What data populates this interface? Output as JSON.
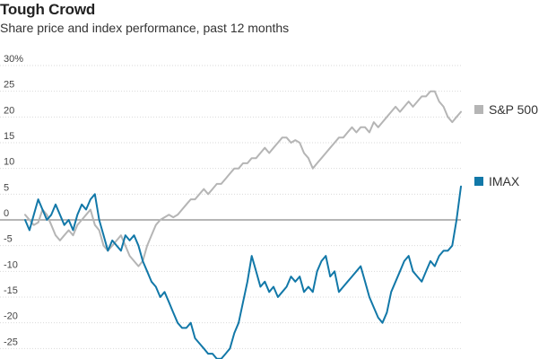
{
  "header": {
    "title": "Tough Crowd",
    "subtitle": "Share price and index performance, past 12 months"
  },
  "colors": {
    "sp500": "#b5b5b5",
    "imax": "#1278a8",
    "grid": "#d9d9d9",
    "zero_line": "#8a8a8a",
    "text": "#333333"
  },
  "chart_data": {
    "type": "line",
    "title": "Tough Crowd",
    "subtitle": "Share price and index performance, past 12 months",
    "ylim": [
      -27,
      30
    ],
    "y_ticks": [
      30,
      25,
      20,
      15,
      10,
      5,
      0,
      -5,
      -10,
      -15,
      -20,
      -25
    ],
    "y_tick_labels": [
      "30%",
      "25",
      "20",
      "15",
      "10",
      "5",
      "0",
      "-5",
      "-10",
      "-15",
      "-20",
      "-25"
    ],
    "x_range": [
      0,
      100
    ],
    "grid": true,
    "legend_placement": "right",
    "series": [
      {
        "name": "S&P 500",
        "color": "#b5b5b5",
        "x": [
          0,
          1,
          2,
          3,
          4,
          5,
          6,
          7,
          8,
          9,
          10,
          11,
          12,
          13,
          14,
          15,
          16,
          17,
          18,
          19,
          20,
          21,
          22,
          23,
          24,
          25,
          26,
          27,
          28,
          29,
          30,
          31,
          32,
          33,
          34,
          35,
          36,
          37,
          38,
          39,
          40,
          41,
          42,
          43,
          44,
          45,
          46,
          47,
          48,
          49,
          50,
          51,
          52,
          53,
          54,
          55,
          56,
          57,
          58,
          59,
          60,
          61,
          62,
          63,
          64,
          65,
          66,
          67,
          68,
          69,
          70,
          71,
          72,
          73,
          74,
          75,
          76,
          77,
          78,
          79,
          80,
          81,
          82,
          83,
          84,
          85,
          86,
          87,
          88,
          89,
          90,
          91,
          92,
          93,
          94,
          95,
          96,
          97,
          98,
          99,
          100
        ],
        "values": [
          1,
          0,
          -1,
          -0.5,
          2,
          1,
          -1,
          -3,
          -4,
          -3,
          -2,
          -3,
          -1,
          0,
          1,
          2,
          -1,
          -2,
          -5,
          -6,
          -5,
          -4,
          -3,
          -5,
          -7,
          -8,
          -9,
          -8,
          -5,
          -3,
          -1,
          0,
          0.5,
          1,
          0.5,
          1,
          2,
          3,
          4,
          4,
          5,
          6,
          5,
          6,
          7,
          7,
          8,
          9,
          10,
          10,
          11,
          11,
          12,
          12,
          13,
          14,
          13,
          14,
          15,
          16,
          16,
          15,
          15.5,
          15,
          13,
          12,
          10,
          11,
          12,
          13,
          14,
          15,
          16,
          16,
          17,
          18,
          17,
          18,
          18,
          17,
          19,
          18,
          19,
          20,
          21,
          22,
          21,
          22,
          23,
          22,
          23,
          24,
          24,
          25,
          25,
          23,
          22,
          20,
          19,
          20,
          21
        ],
        "end_label": "S&P 500"
      },
      {
        "name": "IMAX",
        "color": "#1278a8",
        "x": [
          0,
          1,
          2,
          3,
          4,
          5,
          6,
          7,
          8,
          9,
          10,
          11,
          12,
          13,
          14,
          15,
          16,
          17,
          18,
          19,
          20,
          21,
          22,
          23,
          24,
          25,
          26,
          27,
          28,
          29,
          30,
          31,
          32,
          33,
          34,
          35,
          36,
          37,
          38,
          39,
          40,
          41,
          42,
          43,
          44,
          45,
          46,
          47,
          48,
          49,
          50,
          51,
          52,
          53,
          54,
          55,
          56,
          57,
          58,
          59,
          60,
          61,
          62,
          63,
          64,
          65,
          66,
          67,
          68,
          69,
          70,
          71,
          72,
          73,
          74,
          75,
          76,
          77,
          78,
          79,
          80,
          81,
          82,
          83,
          84,
          85,
          86,
          87,
          88,
          89,
          90,
          91,
          92,
          93,
          94,
          95,
          96,
          97,
          98,
          99,
          100
        ],
        "values": [
          0,
          -2,
          1,
          4,
          2,
          0,
          1,
          3,
          1,
          -1,
          0,
          -2,
          1,
          3,
          2,
          4,
          5,
          0,
          -3,
          -6,
          -4,
          -5,
          -6,
          -3,
          -4,
          -3,
          -5,
          -8,
          -10,
          -12,
          -13,
          -15,
          -14,
          -16,
          -18,
          -20,
          -21,
          -21,
          -20,
          -23,
          -24,
          -25,
          -26,
          -26,
          -27,
          -27,
          -26,
          -25,
          -22,
          -20,
          -16,
          -12,
          -7,
          -10,
          -13,
          -12,
          -14,
          -13,
          -15,
          -14,
          -13,
          -11,
          -12,
          -11,
          -14,
          -13,
          -14,
          -10,
          -8,
          -7,
          -11,
          -10,
          -14,
          -13,
          -12,
          -11,
          -10,
          -9,
          -12,
          -15,
          -17,
          -19,
          -20,
          -18,
          -14,
          -12,
          -10,
          -8,
          -7,
          -10,
          -11,
          -12,
          -10,
          -8,
          -9,
          -7,
          -6,
          -6,
          -5,
          0,
          6.5
        ],
        "end_label": "IMAX"
      }
    ],
    "legend": [
      "S&P 500",
      "IMAX"
    ]
  }
}
